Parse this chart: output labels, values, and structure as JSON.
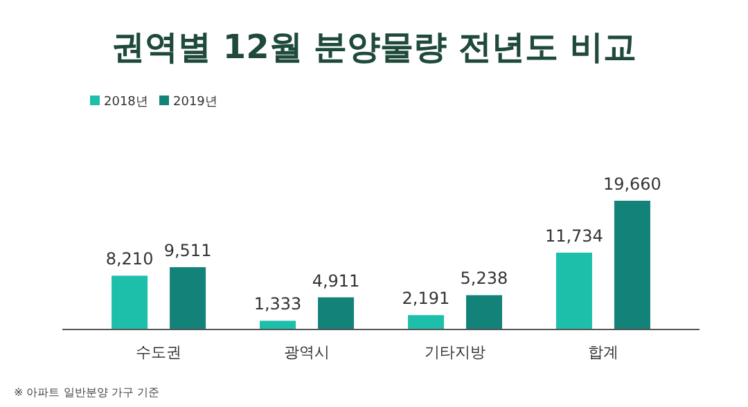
{
  "chart_data": {
    "type": "bar",
    "title": "권역별 12월 분양물량 전년도 비교",
    "categories": [
      "수도권",
      "광역시",
      "기타지방",
      "합계"
    ],
    "series": [
      {
        "name": "2018년",
        "color": "#1dbfab",
        "values": [
          8210,
          1333,
          2191,
          11734
        ],
        "value_labels": [
          "8,210",
          "1,333",
          "2,191",
          "11,734"
        ]
      },
      {
        "name": "2019년",
        "color": "#13837a",
        "values": [
          9511,
          4911,
          5238,
          19660
        ],
        "value_labels": [
          "9,511",
          "4,911",
          "5,238",
          "19,660"
        ]
      }
    ],
    "legend": "top left",
    "annotations": [
      "※ 아파트 일반분양 가구 기준"
    ]
  }
}
